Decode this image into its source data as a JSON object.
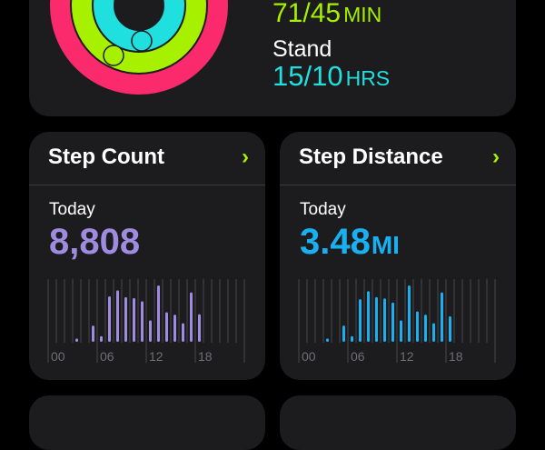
{
  "colors": {
    "move": "#fa2a6d",
    "exercise": "#a6f000",
    "stand": "#1fe0df",
    "steps": "#9f8be0",
    "distance": "#1aaff0",
    "chevron": "#a6f000"
  },
  "summary": {
    "exercise_value": "71/45",
    "exercise_unit": "MIN",
    "stand_label": "Stand",
    "stand_value": "15/10",
    "stand_unit": "HRS"
  },
  "tiles": [
    {
      "title": "Step Count",
      "chevron": "chevron-right-icon",
      "period": "Today",
      "value": "8,808",
      "unit": ""
    },
    {
      "title": "Step Distance",
      "chevron": "chevron-right-icon",
      "period": "Today",
      "value": "3.48",
      "unit": "MI"
    }
  ],
  "chart_data": [
    {
      "type": "bar",
      "x_ticks": [
        "00",
        "06",
        "12",
        "18"
      ],
      "hours": [
        0,
        1,
        2,
        3,
        4,
        5,
        6,
        7,
        8,
        9,
        10,
        11,
        12,
        13,
        14,
        15,
        16,
        17,
        18,
        19,
        20,
        21,
        22,
        23
      ],
      "values": [
        0,
        0,
        0,
        8,
        0,
        40,
        14,
        112,
        127,
        110,
        108,
        100,
        53,
        139,
        73,
        67,
        46,
        122,
        68,
        0,
        0,
        0,
        0,
        0
      ],
      "grid": true
    },
    {
      "type": "bar",
      "x_ticks": [
        "00",
        "06",
        "12",
        "18"
      ],
      "hours": [
        0,
        1,
        2,
        3,
        4,
        5,
        6,
        7,
        8,
        9,
        10,
        11,
        12,
        13,
        14,
        15,
        16,
        17,
        18,
        19,
        20,
        21,
        22,
        23
      ],
      "values": [
        0,
        0,
        0,
        8,
        0,
        40,
        14,
        105,
        125,
        110,
        107,
        97,
        53,
        139,
        75,
        67,
        46,
        122,
        63,
        0,
        0,
        0,
        0,
        0
      ],
      "grid": true
    }
  ]
}
